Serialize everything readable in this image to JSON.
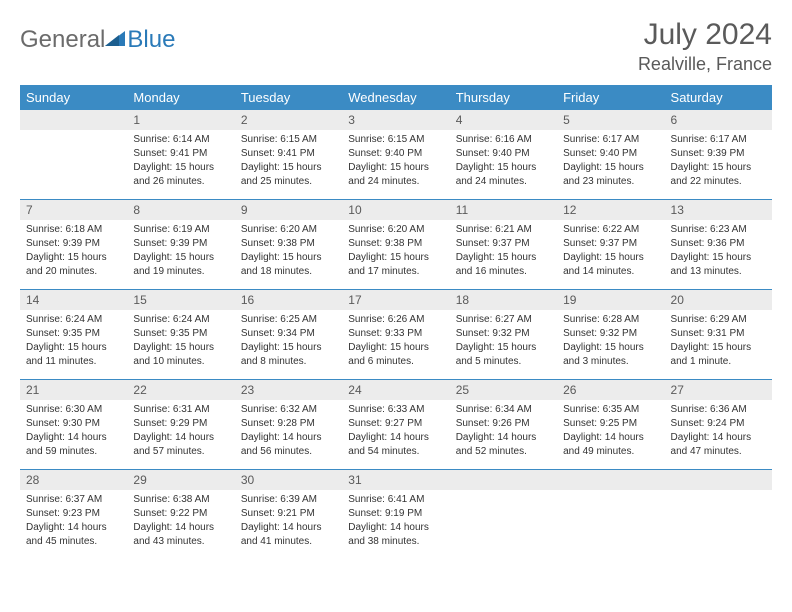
{
  "brand": {
    "text_gray": "General",
    "text_blue": "Blue",
    "gray_color": "#6b6b6b",
    "blue_color": "#2a7ab8"
  },
  "title": {
    "month": "July 2024",
    "location": "Realville, France",
    "title_fontsize": 30,
    "location_fontsize": 18,
    "color": "#5a5a5a"
  },
  "header_row": {
    "bg": "#3b8bc4",
    "fg": "#ffffff",
    "days": [
      "Sunday",
      "Monday",
      "Tuesday",
      "Wednesday",
      "Thursday",
      "Friday",
      "Saturday"
    ]
  },
  "daynum_bg": "#ececec",
  "rule_color": "#3b8bc4",
  "cell_fontsize": 10,
  "weeks": [
    {
      "nums": [
        "",
        "1",
        "2",
        "3",
        "4",
        "5",
        "6"
      ],
      "cells": [
        null,
        {
          "sunrise": "Sunrise: 6:14 AM",
          "sunset": "Sunset: 9:41 PM",
          "day1": "Daylight: 15 hours",
          "day2": "and 26 minutes."
        },
        {
          "sunrise": "Sunrise: 6:15 AM",
          "sunset": "Sunset: 9:41 PM",
          "day1": "Daylight: 15 hours",
          "day2": "and 25 minutes."
        },
        {
          "sunrise": "Sunrise: 6:15 AM",
          "sunset": "Sunset: 9:40 PM",
          "day1": "Daylight: 15 hours",
          "day2": "and 24 minutes."
        },
        {
          "sunrise": "Sunrise: 6:16 AM",
          "sunset": "Sunset: 9:40 PM",
          "day1": "Daylight: 15 hours",
          "day2": "and 24 minutes."
        },
        {
          "sunrise": "Sunrise: 6:17 AM",
          "sunset": "Sunset: 9:40 PM",
          "day1": "Daylight: 15 hours",
          "day2": "and 23 minutes."
        },
        {
          "sunrise": "Sunrise: 6:17 AM",
          "sunset": "Sunset: 9:39 PM",
          "day1": "Daylight: 15 hours",
          "day2": "and 22 minutes."
        }
      ]
    },
    {
      "nums": [
        "7",
        "8",
        "9",
        "10",
        "11",
        "12",
        "13"
      ],
      "cells": [
        {
          "sunrise": "Sunrise: 6:18 AM",
          "sunset": "Sunset: 9:39 PM",
          "day1": "Daylight: 15 hours",
          "day2": "and 20 minutes."
        },
        {
          "sunrise": "Sunrise: 6:19 AM",
          "sunset": "Sunset: 9:39 PM",
          "day1": "Daylight: 15 hours",
          "day2": "and 19 minutes."
        },
        {
          "sunrise": "Sunrise: 6:20 AM",
          "sunset": "Sunset: 9:38 PM",
          "day1": "Daylight: 15 hours",
          "day2": "and 18 minutes."
        },
        {
          "sunrise": "Sunrise: 6:20 AM",
          "sunset": "Sunset: 9:38 PM",
          "day1": "Daylight: 15 hours",
          "day2": "and 17 minutes."
        },
        {
          "sunrise": "Sunrise: 6:21 AM",
          "sunset": "Sunset: 9:37 PM",
          "day1": "Daylight: 15 hours",
          "day2": "and 16 minutes."
        },
        {
          "sunrise": "Sunrise: 6:22 AM",
          "sunset": "Sunset: 9:37 PM",
          "day1": "Daylight: 15 hours",
          "day2": "and 14 minutes."
        },
        {
          "sunrise": "Sunrise: 6:23 AM",
          "sunset": "Sunset: 9:36 PM",
          "day1": "Daylight: 15 hours",
          "day2": "and 13 minutes."
        }
      ]
    },
    {
      "nums": [
        "14",
        "15",
        "16",
        "17",
        "18",
        "19",
        "20"
      ],
      "cells": [
        {
          "sunrise": "Sunrise: 6:24 AM",
          "sunset": "Sunset: 9:35 PM",
          "day1": "Daylight: 15 hours",
          "day2": "and 11 minutes."
        },
        {
          "sunrise": "Sunrise: 6:24 AM",
          "sunset": "Sunset: 9:35 PM",
          "day1": "Daylight: 15 hours",
          "day2": "and 10 minutes."
        },
        {
          "sunrise": "Sunrise: 6:25 AM",
          "sunset": "Sunset: 9:34 PM",
          "day1": "Daylight: 15 hours",
          "day2": "and 8 minutes."
        },
        {
          "sunrise": "Sunrise: 6:26 AM",
          "sunset": "Sunset: 9:33 PM",
          "day1": "Daylight: 15 hours",
          "day2": "and 6 minutes."
        },
        {
          "sunrise": "Sunrise: 6:27 AM",
          "sunset": "Sunset: 9:32 PM",
          "day1": "Daylight: 15 hours",
          "day2": "and 5 minutes."
        },
        {
          "sunrise": "Sunrise: 6:28 AM",
          "sunset": "Sunset: 9:32 PM",
          "day1": "Daylight: 15 hours",
          "day2": "and 3 minutes."
        },
        {
          "sunrise": "Sunrise: 6:29 AM",
          "sunset": "Sunset: 9:31 PM",
          "day1": "Daylight: 15 hours",
          "day2": "and 1 minute."
        }
      ]
    },
    {
      "nums": [
        "21",
        "22",
        "23",
        "24",
        "25",
        "26",
        "27"
      ],
      "cells": [
        {
          "sunrise": "Sunrise: 6:30 AM",
          "sunset": "Sunset: 9:30 PM",
          "day1": "Daylight: 14 hours",
          "day2": "and 59 minutes."
        },
        {
          "sunrise": "Sunrise: 6:31 AM",
          "sunset": "Sunset: 9:29 PM",
          "day1": "Daylight: 14 hours",
          "day2": "and 57 minutes."
        },
        {
          "sunrise": "Sunrise: 6:32 AM",
          "sunset": "Sunset: 9:28 PM",
          "day1": "Daylight: 14 hours",
          "day2": "and 56 minutes."
        },
        {
          "sunrise": "Sunrise: 6:33 AM",
          "sunset": "Sunset: 9:27 PM",
          "day1": "Daylight: 14 hours",
          "day2": "and 54 minutes."
        },
        {
          "sunrise": "Sunrise: 6:34 AM",
          "sunset": "Sunset: 9:26 PM",
          "day1": "Daylight: 14 hours",
          "day2": "and 52 minutes."
        },
        {
          "sunrise": "Sunrise: 6:35 AM",
          "sunset": "Sunset: 9:25 PM",
          "day1": "Daylight: 14 hours",
          "day2": "and 49 minutes."
        },
        {
          "sunrise": "Sunrise: 6:36 AM",
          "sunset": "Sunset: 9:24 PM",
          "day1": "Daylight: 14 hours",
          "day2": "and 47 minutes."
        }
      ]
    },
    {
      "nums": [
        "28",
        "29",
        "30",
        "31",
        "",
        "",
        ""
      ],
      "cells": [
        {
          "sunrise": "Sunrise: 6:37 AM",
          "sunset": "Sunset: 9:23 PM",
          "day1": "Daylight: 14 hours",
          "day2": "and 45 minutes."
        },
        {
          "sunrise": "Sunrise: 6:38 AM",
          "sunset": "Sunset: 9:22 PM",
          "day1": "Daylight: 14 hours",
          "day2": "and 43 minutes."
        },
        {
          "sunrise": "Sunrise: 6:39 AM",
          "sunset": "Sunset: 9:21 PM",
          "day1": "Daylight: 14 hours",
          "day2": "and 41 minutes."
        },
        {
          "sunrise": "Sunrise: 6:41 AM",
          "sunset": "Sunset: 9:19 PM",
          "day1": "Daylight: 14 hours",
          "day2": "and 38 minutes."
        },
        null,
        null,
        null
      ]
    }
  ]
}
